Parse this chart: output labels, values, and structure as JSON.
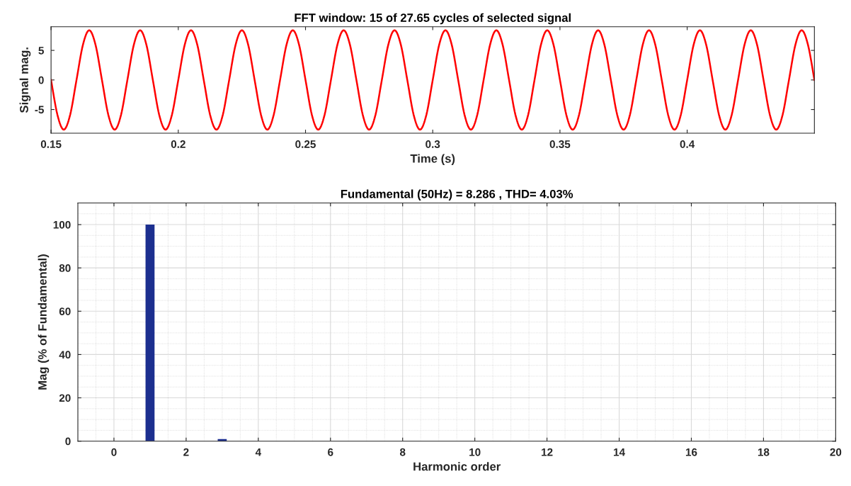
{
  "chart_data": [
    {
      "type": "line",
      "title": "FFT window: 15 of 27.65 cycles of selected signal",
      "xlabel": "Time (s)",
      "ylabel": "Signal mag.",
      "xlim": [
        0.15,
        0.45
      ],
      "xticks": [
        0.15,
        0.2,
        0.25,
        0.3,
        0.35,
        0.4
      ],
      "ylim": [
        -9,
        9
      ],
      "yticks": [
        -5,
        0,
        5
      ],
      "grid": false,
      "series": [
        {
          "color": "#ff0000",
          "x": [
            0.15,
            0.1525,
            0.155,
            0.1575,
            0.16,
            0.1625,
            0.165,
            0.1675,
            0.17,
            0.1725,
            0.175,
            0.1775,
            0.18,
            0.1825,
            0.185,
            0.1875,
            0.19,
            0.1925,
            0.195,
            0.1975,
            0.2,
            0.2025,
            0.205,
            0.2075,
            0.21,
            0.2125,
            0.215,
            0.2175,
            0.22,
            0.2225,
            0.225,
            0.2275,
            0.23,
            0.2325,
            0.235,
            0.2375,
            0.24,
            0.2425,
            0.245,
            0.2475,
            0.25,
            0.2525,
            0.255,
            0.2575,
            0.26,
            0.2625,
            0.265,
            0.2675,
            0.27,
            0.2725,
            0.275,
            0.2775,
            0.28,
            0.2825,
            0.285,
            0.2875,
            0.29,
            0.2925,
            0.295,
            0.2975,
            0.3,
            0.3025,
            0.305,
            0.3075,
            0.31,
            0.3125,
            0.315,
            0.3175,
            0.32,
            0.3225,
            0.325,
            0.3275,
            0.33,
            0.3325,
            0.335,
            0.3375,
            0.34,
            0.3425,
            0.345,
            0.3475,
            0.35,
            0.3525,
            0.355,
            0.3575,
            0.36,
            0.3625,
            0.365,
            0.3675,
            0.37,
            0.3725,
            0.375,
            0.3775,
            0.38,
            0.3825,
            0.385,
            0.3875,
            0.39,
            0.3925,
            0.395,
            0.3975,
            0.4,
            0.4025,
            0.405,
            0.4075,
            0.41,
            0.4125,
            0.415,
            0.4175,
            0.42,
            0.4225,
            0.425,
            0.4275,
            0.43,
            0.4325,
            0.435,
            0.4375,
            0.44,
            0.4425,
            0.445,
            0.4475,
            0.45
          ],
          "values": [
            0,
            -5.9,
            -8.4,
            -5.9,
            0,
            5.9,
            8.4,
            5.9,
            0,
            -5.9,
            -8.4,
            -5.9,
            0,
            5.9,
            8.4,
            5.9,
            0,
            -5.9,
            -8.4,
            -5.9,
            0,
            5.9,
            8.4,
            5.9,
            0,
            -5.9,
            -8.4,
            -5.9,
            0,
            5.9,
            8.4,
            5.9,
            0,
            -5.9,
            -8.4,
            -5.9,
            0,
            5.9,
            8.4,
            5.9,
            0,
            -5.9,
            -8.4,
            -5.9,
            0,
            5.9,
            8.4,
            5.9,
            0,
            -5.9,
            -8.4,
            -5.9,
            0,
            5.9,
            8.4,
            5.9,
            0,
            -5.9,
            -8.4,
            -5.9,
            0,
            5.9,
            8.4,
            5.9,
            0,
            -5.9,
            -8.4,
            -5.9,
            0,
            5.9,
            8.4,
            5.9,
            0,
            -5.9,
            -8.4,
            -5.9,
            0,
            5.9,
            8.4,
            5.9,
            0,
            -5.9,
            -8.4,
            -5.9,
            0,
            5.9,
            8.4,
            5.9,
            0,
            -5.9,
            -8.4,
            -5.9,
            0,
            5.9,
            8.4,
            5.9,
            0,
            -5.9,
            -8.4,
            -5.9,
            0,
            5.9,
            8.4,
            5.9,
            0,
            -5.9,
            -8.4,
            -5.9,
            0,
            5.9,
            8.4,
            5.9,
            0,
            -5.9,
            -8.4,
            -5.9,
            0,
            5.9,
            8.4,
            5.9,
            0
          ]
        }
      ]
    },
    {
      "type": "bar",
      "title": "Fundamental (50Hz) = 8.286 , THD= 4.03%",
      "xlabel": "Harmonic order",
      "ylabel": "Mag (% of Fundamental)",
      "xlim": [
        -1,
        20
      ],
      "xticks": [
        0,
        2,
        4,
        6,
        8,
        10,
        12,
        14,
        16,
        18,
        20
      ],
      "ylim": [
        0,
        110
      ],
      "yticks": [
        0,
        20,
        40,
        60,
        80,
        100
      ],
      "grid": true,
      "series": [
        {
          "color": "#1c2f8f",
          "x": [
            1,
            3
          ],
          "values": [
            100,
            1
          ]
        }
      ]
    }
  ]
}
